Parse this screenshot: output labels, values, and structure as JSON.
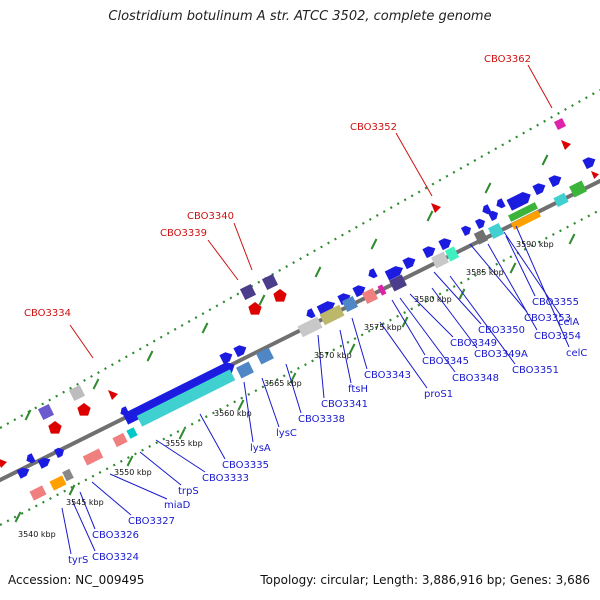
{
  "title": "Clostridium botulinum A str. ATCC 3502, complete genome",
  "footer": {
    "accession": "Accession: NC_009495",
    "summary": "Topology: circular; Length: 3,886,916 bp; Genes: 3,686"
  },
  "kbp_ticks": [
    "3540 kbp",
    "3545 kbp",
    "3550 kbp",
    "3555 kbp",
    "3560 kbp",
    "3565 kbp",
    "3570 kbp",
    "3575 kbp",
    "3580 kbp",
    "3585 kbp",
    "3590 kbp"
  ],
  "red_labels": [
    "CBO3334",
    "CBO3339",
    "CBO3340",
    "CBO3352",
    "CBO3362"
  ],
  "blue_labels": [
    "tyrS",
    "CBO3324",
    "CBO3326",
    "CBO3327",
    "miaD",
    "trpS",
    "CBO3333",
    "CBO3335",
    "lysA",
    "lysC",
    "CBO3338",
    "CBO3341",
    "ftsH",
    "CBO3343",
    "proS1",
    "CBO3345",
    "CBO3348",
    "CBO3349",
    "CBO3349A",
    "CBO3350",
    "CBO3351",
    "CBO3353",
    "CBO3354",
    "CBO3355",
    "celA",
    "celC"
  ],
  "colors": {
    "backbone": "#707070",
    "dots": "#2e8b2e",
    "cds": "#1c1ce0",
    "red_feature": "#dd0000",
    "blue_label": "#1a1acc",
    "red_label": "#cc1111"
  }
}
